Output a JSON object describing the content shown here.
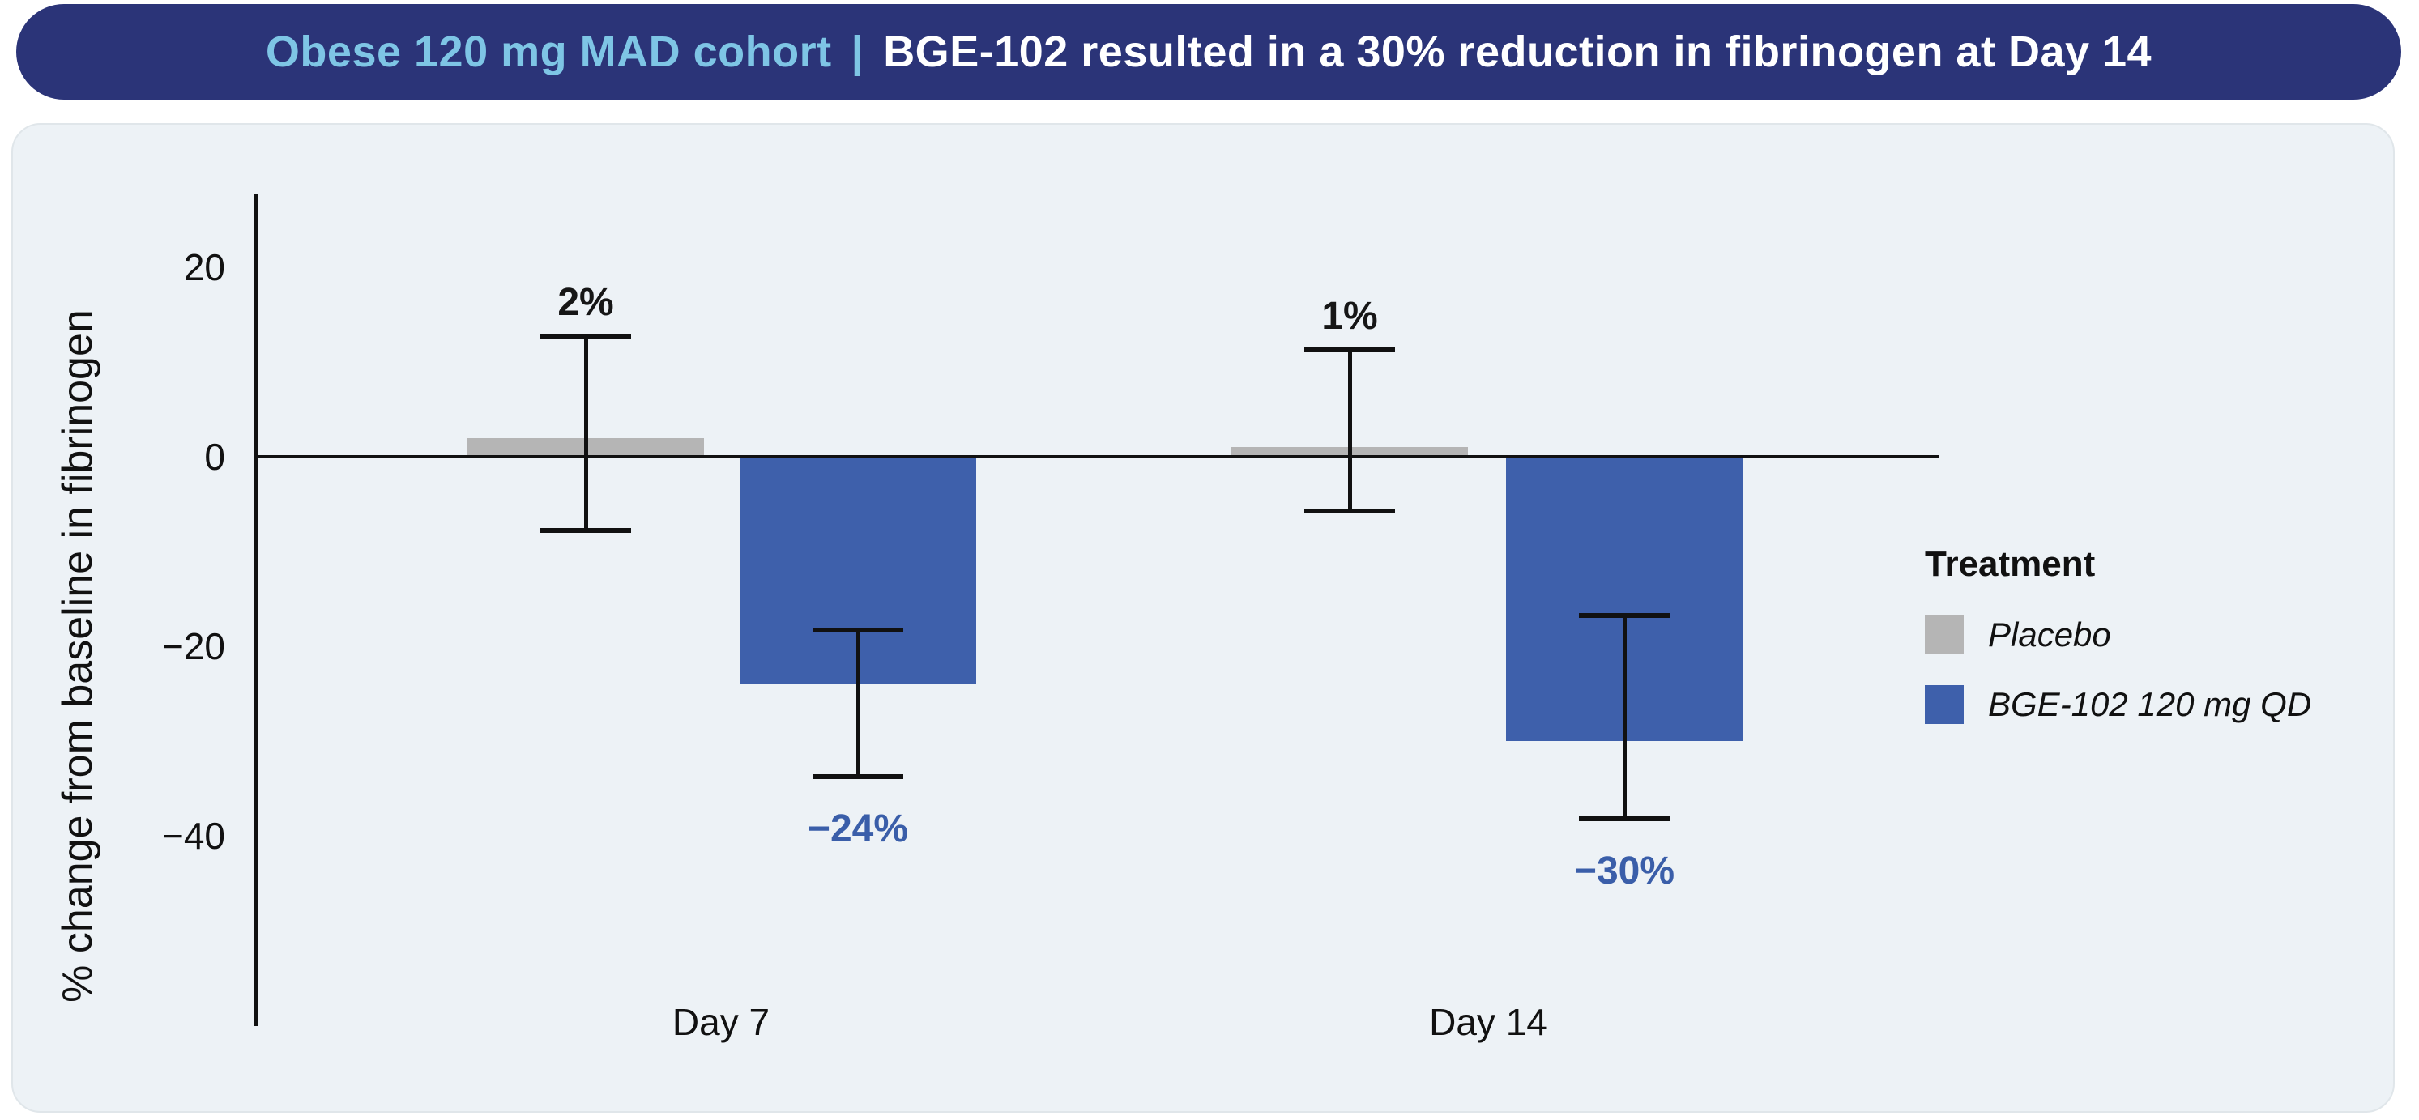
{
  "banner": {
    "highlight": "Obese 120 mg MAD cohort",
    "separator": "|",
    "message": "BGE-102 resulted in a 30% reduction in fibrinogen at Day 14",
    "bg_color": "#2b3478",
    "highlight_color": "#7ec5e5",
    "message_color": "#ffffff"
  },
  "colors": {
    "panel_bg": "#edf2f6",
    "panel_border": "#e0e6ea",
    "axis": "#111111",
    "placebo_gray": "#b5b5b5",
    "drug_blue": "#3e60ab",
    "value_label_blue": "#3a5ea9",
    "text_black": "#161616"
  },
  "chart_data": {
    "type": "bar",
    "title": "",
    "ylabel": "% change from baseline in fibrinogen",
    "xlabel": "",
    "ylim": [
      -60,
      28
    ],
    "grid": false,
    "legend_position": "right",
    "legend_title": "Treatment",
    "categories": [
      "Day 7",
      "Day 14"
    ],
    "yticks": [
      {
        "v": 20,
        "label": "20"
      },
      {
        "v": 0,
        "label": "0"
      },
      {
        "v": -20,
        "label": "−20"
      },
      {
        "v": -40,
        "label": "−40"
      }
    ],
    "series": [
      {
        "name": "Placebo",
        "color": "#b5b5b5",
        "value_label_color": "#161616",
        "values": [
          2,
          1
        ],
        "value_labels": [
          "2%",
          "1%"
        ],
        "error_high": [
          13,
          11.5
        ],
        "error_low": [
          -8,
          -6
        ]
      },
      {
        "name": "BGE-102 120 mg QD",
        "color": "#3e60ab",
        "value_label_color": "#3a5ea9",
        "values": [
          -24,
          -30
        ],
        "value_labels": [
          "−24%",
          "−30%"
        ],
        "error_high": [
          -18,
          -16.5
        ],
        "error_low": [
          -34,
          -38.5
        ]
      }
    ]
  }
}
